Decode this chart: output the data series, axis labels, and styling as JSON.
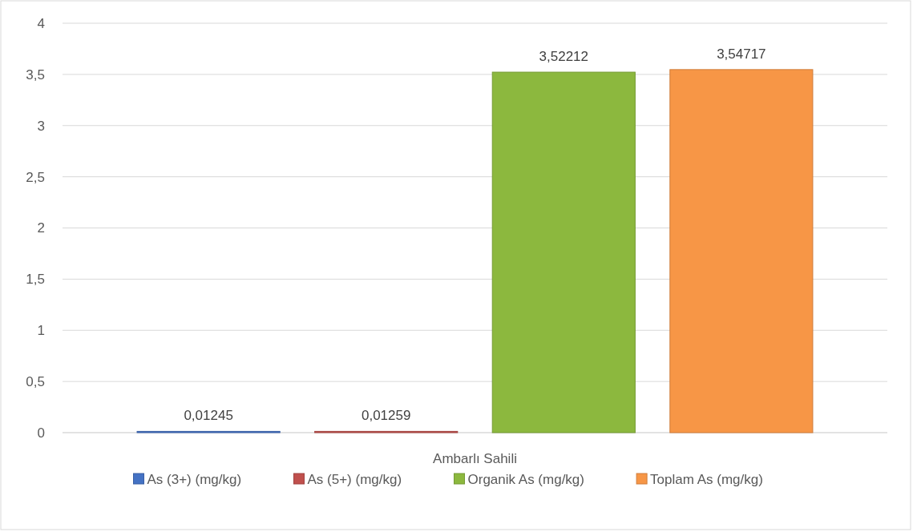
{
  "chart_data": {
    "type": "bar",
    "categories": [
      "Ambarlı Sahili"
    ],
    "series": [
      {
        "name": "As (3+) (mg/kg)",
        "color": "#4472c4",
        "values": [
          0.01245
        ],
        "value_labels": [
          "0,01245"
        ]
      },
      {
        "name": "As (5+) (mg/kg)",
        "color": "#c0504d",
        "values": [
          0.01259
        ],
        "value_labels": [
          "0,01259"
        ]
      },
      {
        "name": "Organik As (mg/kg)",
        "color": "#8cb83e",
        "values": [
          3.52212
        ],
        "value_labels": [
          "3,52212"
        ]
      },
      {
        "name": "Toplam As (mg/kg)",
        "color": "#f79646",
        "values": [
          3.54717
        ],
        "value_labels": [
          "3,54717"
        ]
      }
    ],
    "ylim": [
      0,
      4
    ],
    "yticks": [
      0,
      {
        "value": 0.5,
        "label": "0,5"
      },
      1,
      {
        "value": 1.5,
        "label": "1,5"
      },
      2,
      {
        "value": 2.5,
        "label": "2,5"
      },
      3,
      {
        "value": 3.5,
        "label": "3,5"
      },
      4
    ],
    "grid": "y",
    "legend": "bottom"
  }
}
